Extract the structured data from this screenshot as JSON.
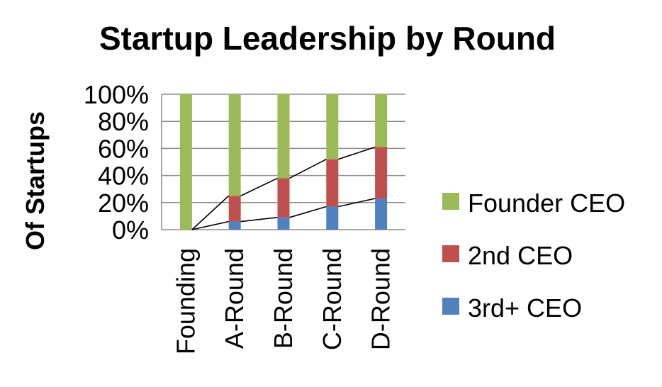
{
  "chart_data": {
    "type": "bar",
    "stacked": true,
    "normalized": true,
    "title": "Startup Leadership by Round",
    "ylabel": "Of Startups",
    "xlabel": "",
    "categories": [
      "Founding",
      "A-Round",
      "B-Round",
      "C-Round",
      "D-Round"
    ],
    "yticks": [
      "0%",
      "20%",
      "40%",
      "60%",
      "80%",
      "100%"
    ],
    "ylim": [
      0,
      100
    ],
    "grid": true,
    "legend_position": "right",
    "series_lines": true,
    "series": [
      {
        "name": "3rd+ CEO",
        "color": "#4f81bd",
        "values": [
          0,
          6,
          9,
          17,
          23
        ]
      },
      {
        "name": "2nd CEO",
        "color": "#c0504d",
        "values": [
          0,
          19,
          29,
          35,
          38
        ]
      },
      {
        "name": "Founder CEO",
        "color": "#9bbb59",
        "values": [
          100,
          75,
          62,
          48,
          39
        ]
      }
    ],
    "legend_order": [
      "Founder CEO",
      "2nd CEO",
      "3rd+ CEO"
    ]
  }
}
